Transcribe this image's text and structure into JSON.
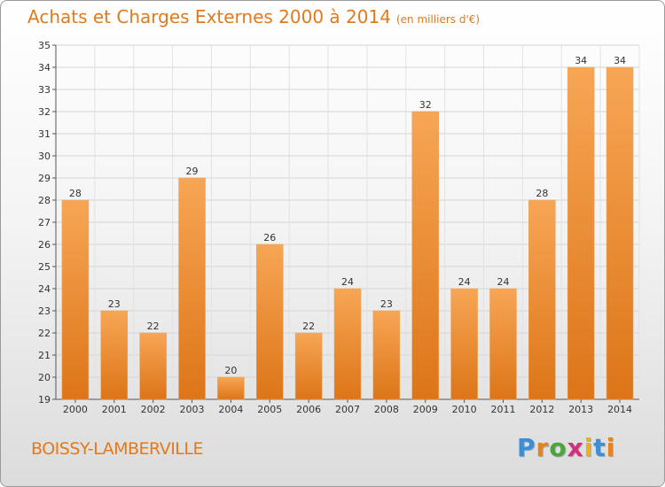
{
  "title": "Achats et Charges Externes 2000 à 2014",
  "unit": "(en milliers d'€)",
  "place": "BOISSY-LAMBERVILLE",
  "logo": {
    "letters": [
      "P",
      "r",
      "o",
      "x",
      "i",
      "t",
      "i"
    ],
    "colors": [
      "#3b8fd4",
      "#e8821c",
      "#4aa83a",
      "#d42f7d",
      "#e8b21c",
      "#3b8fd4",
      "#e8821c"
    ]
  },
  "colors": {
    "title": "#e27a1c",
    "bar_top": "#f7a655",
    "bar_bottom": "#dd7518"
  },
  "chart_data": {
    "type": "bar",
    "categories": [
      "2000",
      "2001",
      "2002",
      "2003",
      "2004",
      "2005",
      "2006",
      "2007",
      "2008",
      "2009",
      "2010",
      "2011",
      "2012",
      "2013",
      "2014"
    ],
    "values": [
      28,
      23,
      22,
      29,
      20,
      26,
      22,
      24,
      23,
      32,
      24,
      24,
      28,
      34,
      34
    ],
    "ylim": [
      19,
      35
    ],
    "yticks": [
      19,
      20,
      21,
      22,
      23,
      24,
      25,
      26,
      27,
      28,
      29,
      30,
      31,
      32,
      33,
      34,
      35
    ],
    "grid": true
  }
}
